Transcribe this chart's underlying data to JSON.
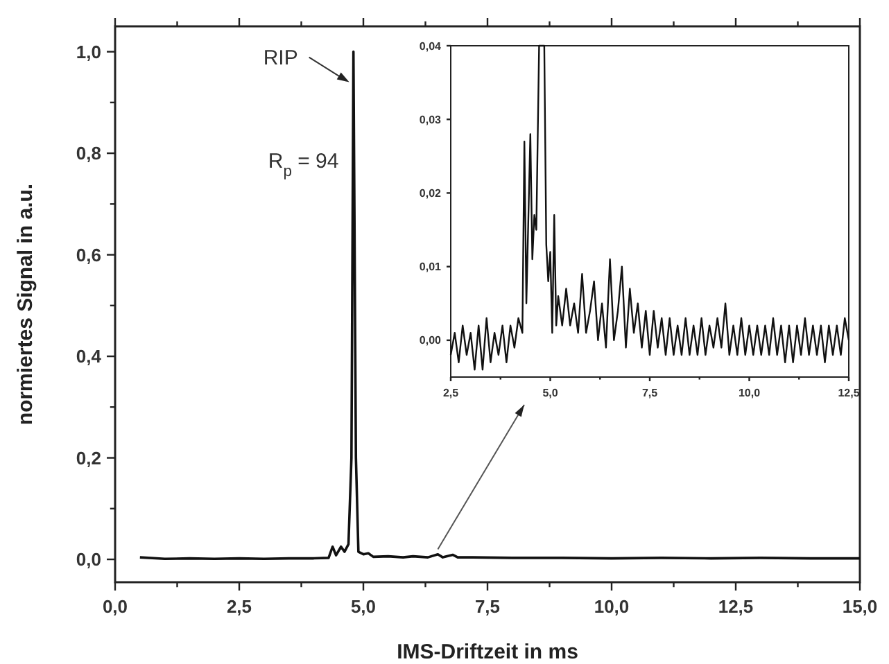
{
  "chart_data": [
    {
      "type": "line",
      "xlabel": "IMS-Driftzeit in ms",
      "ylabel": "normiertes Signal in a.u.",
      "xlim": [
        0,
        15
      ],
      "ylim": [
        -0.045,
        1.05
      ],
      "xticks": [
        {
          "value": 0,
          "label": "0,0"
        },
        {
          "value": 1.25,
          "label": null
        },
        {
          "value": 2.5,
          "label": "2,5"
        },
        {
          "value": 3.75,
          "label": null
        },
        {
          "value": 5,
          "label": "5,0"
        },
        {
          "value": 6.25,
          "label": null
        },
        {
          "value": 7.5,
          "label": "7,5"
        },
        {
          "value": 8.75,
          "label": null
        },
        {
          "value": 10,
          "label": "10,0"
        },
        {
          "value": 11.25,
          "label": null
        },
        {
          "value": 12.5,
          "label": "12,5"
        },
        {
          "value": 13.75,
          "label": null
        },
        {
          "value": 15,
          "label": "15,0"
        }
      ],
      "yticks": [
        {
          "value": 0,
          "label": "0,0"
        },
        {
          "value": 0.1,
          "label": null
        },
        {
          "value": 0.2,
          "label": "0,2"
        },
        {
          "value": 0.3,
          "label": null
        },
        {
          "value": 0.4,
          "label": "0,4"
        },
        {
          "value": 0.5,
          "label": null
        },
        {
          "value": 0.6,
          "label": "0,6"
        },
        {
          "value": 0.7,
          "label": null
        },
        {
          "value": 0.8,
          "label": "0,8"
        },
        {
          "value": 0.9,
          "label": null
        },
        {
          "value": 1,
          "label": "1,0"
        }
      ],
      "annotations": [
        {
          "text": "RIP",
          "x": 4.8,
          "y": 0.94
        },
        "R$_{p}$ = 94"
      ],
      "series": [
        {
          "color": "#111111",
          "x": [
            0.5,
            1,
            1.5,
            2,
            2.5,
            3,
            3.5,
            4,
            4.3,
            4.38,
            4.45,
            4.55,
            4.62,
            4.7,
            4.76,
            4.8,
            4.85,
            4.9,
            5,
            5.1,
            5.2,
            5.5,
            5.8,
            6,
            6.3,
            6.5,
            6.6,
            6.8,
            6.9,
            7.2,
            8,
            9,
            10,
            11,
            12,
            13,
            14,
            15
          ],
          "values": [
            0.004,
            0.001,
            0.002,
            0.001,
            0.002,
            0.001,
            0.002,
            0.002,
            0.003,
            0.025,
            0.008,
            0.025,
            0.015,
            0.03,
            0.2,
            1.0,
            0.2,
            0.015,
            0.01,
            0.012,
            0.005,
            0.006,
            0.004,
            0.006,
            0.004,
            0.01,
            0.004,
            0.009,
            0.004,
            0.004,
            0.003,
            0.003,
            0.002,
            0.003,
            0.002,
            0.003,
            0.002,
            0.002
          ]
        }
      ]
    },
    {
      "type": "line",
      "xlim": [
        2.5,
        12.5
      ],
      "ylim": [
        -0.005,
        0.04
      ],
      "xticks": [
        {
          "value": 2.5,
          "label": "2,5"
        },
        {
          "value": 3.75,
          "label": null
        },
        {
          "value": 5,
          "label": "5,0"
        },
        {
          "value": 6.25,
          "label": null
        },
        {
          "value": 7.5,
          "label": "7,5"
        },
        {
          "value": 8.75,
          "label": null
        },
        {
          "value": 10,
          "label": "10,0"
        },
        {
          "value": 11.25,
          "label": null
        },
        {
          "value": 12.5,
          "label": "12,5"
        }
      ],
      "yticks": [
        {
          "value": 0,
          "label": "0,00"
        },
        {
          "value": 0.01,
          "label": "0,01"
        },
        {
          "value": 0.02,
          "label": "0,02"
        },
        {
          "value": 0.03,
          "label": "0,03"
        },
        {
          "value": 0.04,
          "label": "0,04"
        }
      ],
      "series": [
        {
          "color": "#111111",
          "x": [
            2.5,
            2.6,
            2.7,
            2.8,
            2.9,
            3.0,
            3.1,
            3.2,
            3.3,
            3.4,
            3.5,
            3.6,
            3.7,
            3.8,
            3.9,
            4.0,
            4.1,
            4.2,
            4.3,
            4.35,
            4.4,
            4.5,
            4.55,
            4.6,
            4.65,
            4.72,
            4.85,
            4.9,
            4.95,
            5.0,
            5.05,
            5.1,
            5.15,
            5.2,
            5.3,
            5.4,
            5.5,
            5.6,
            5.7,
            5.8,
            5.9,
            6.0,
            6.1,
            6.2,
            6.3,
            6.4,
            6.5,
            6.6,
            6.7,
            6.8,
            6.9,
            7.0,
            7.1,
            7.2,
            7.3,
            7.4,
            7.5,
            7.6,
            7.7,
            7.8,
            7.9,
            8.0,
            8.1,
            8.2,
            8.3,
            8.4,
            8.5,
            8.6,
            8.7,
            8.8,
            8.9,
            9.0,
            9.1,
            9.2,
            9.3,
            9.4,
            9.5,
            9.6,
            9.7,
            9.8,
            9.9,
            10.0,
            10.1,
            10.2,
            10.3,
            10.4,
            10.5,
            10.6,
            10.7,
            10.8,
            10.9,
            11.0,
            11.1,
            11.2,
            11.3,
            11.4,
            11.5,
            11.6,
            11.7,
            11.8,
            11.9,
            12.0,
            12.1,
            12.2,
            12.3,
            12.4,
            12.5
          ],
          "values": [
            -0.002,
            0.001,
            -0.003,
            0.002,
            -0.002,
            0.001,
            -0.004,
            0.002,
            -0.004,
            0.003,
            -0.003,
            0.001,
            -0.002,
            0.002,
            -0.003,
            0.002,
            -0.001,
            0.003,
            0.001,
            0.027,
            0.005,
            0.028,
            0.011,
            0.017,
            0.015,
            0.04,
            0.04,
            0.013,
            0.008,
            0.012,
            0.001,
            0.017,
            0.002,
            0.006,
            0.002,
            0.007,
            0.002,
            0.005,
            0.001,
            0.009,
            0.001,
            0.004,
            0.008,
            0.0,
            0.005,
            -0.001,
            0.011,
            0.0,
            0.004,
            0.01,
            -0.001,
            0.007,
            0.001,
            0.005,
            -0.001,
            0.004,
            -0.002,
            0.004,
            -0.001,
            0.003,
            -0.002,
            0.003,
            -0.002,
            0.002,
            -0.002,
            0.003,
            -0.002,
            0.002,
            -0.002,
            0.003,
            -0.002,
            0.002,
            -0.001,
            0.003,
            -0.001,
            0.005,
            -0.002,
            0.002,
            -0.002,
            0.003,
            -0.002,
            0.002,
            -0.002,
            0.002,
            -0.002,
            0.002,
            -0.002,
            0.003,
            -0.002,
            0.002,
            -0.003,
            0.002,
            -0.003,
            0.002,
            -0.002,
            0.003,
            -0.002,
            0.002,
            -0.002,
            0.002,
            -0.003,
            0.002,
            -0.002,
            0.002,
            -0.002,
            0.003,
            0.0
          ]
        }
      ]
    }
  ]
}
